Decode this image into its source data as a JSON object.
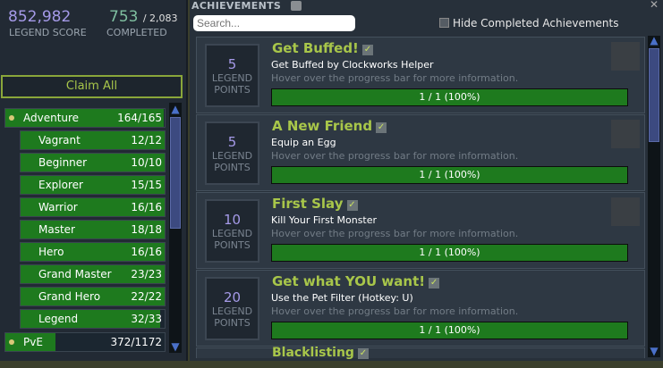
{
  "stats": {
    "legend_score": "852,982",
    "legend_score_label": "LEGEND SCORE",
    "completed": "753",
    "total": "/ 2,083",
    "completed_label": "COMPLETED"
  },
  "claim_all": "Claim All",
  "categories": [
    {
      "label": "Adventure",
      "count": "164/165",
      "progress": 0.994,
      "top": true
    },
    {
      "label": "Vagrant",
      "count": "12/12",
      "progress": 1
    },
    {
      "label": "Beginner",
      "count": "10/10",
      "progress": 1
    },
    {
      "label": "Explorer",
      "count": "15/15",
      "progress": 1
    },
    {
      "label": "Warrior",
      "count": "16/16",
      "progress": 1
    },
    {
      "label": "Master",
      "count": "18/18",
      "progress": 1
    },
    {
      "label": "Hero",
      "count": "16/16",
      "progress": 1
    },
    {
      "label": "Grand Master",
      "count": "23/23",
      "progress": 1
    },
    {
      "label": "Grand Hero",
      "count": "22/22",
      "progress": 1
    },
    {
      "label": "Legend",
      "count": "32/33",
      "progress": 0.97
    },
    {
      "label": "PvE",
      "count": "372/1172",
      "progress": 0.317,
      "top": true
    }
  ],
  "header": {
    "title": "ACHIEVEMENTS",
    "search_placeholder": "Search...",
    "hide_completed": "Hide Completed Achievements"
  },
  "achievements": [
    {
      "points": "5",
      "points_label_1": "LEGEND",
      "points_label_2": "POINTS",
      "title": "Get Buffed!",
      "desc": "Get Buffed by Clockworks Helper",
      "hint": "Hover over the progress bar for more information.",
      "progress": "1 / 1 (100%)",
      "icon": "egg-icon"
    },
    {
      "points": "5",
      "points_label_1": "LEGEND",
      "points_label_2": "POINTS",
      "title": "A New Friend",
      "desc": "Equip an Egg",
      "hint": "Hover over the progress bar for more information.",
      "progress": "1 / 1 (100%)",
      "icon": "pet-icon"
    },
    {
      "points": "10",
      "points_label_1": "LEGEND",
      "points_label_2": "POINTS",
      "title": "First Slay",
      "desc": "Kill Your First Monster",
      "hint": "Hover over the progress bar for more information.",
      "progress": "1 / 1 (100%)",
      "icon": "monster-icon"
    },
    {
      "points": "20",
      "points_label_1": "LEGEND",
      "points_label_2": "POINTS",
      "title": "Get what YOU want!",
      "desc": "Use the Pet Filter (Hotkey: U)",
      "hint": "Hover over the progress bar for more information.",
      "progress": "1 / 1 (100%)",
      "icon": ""
    },
    {
      "title": "Blacklisting"
    }
  ]
}
